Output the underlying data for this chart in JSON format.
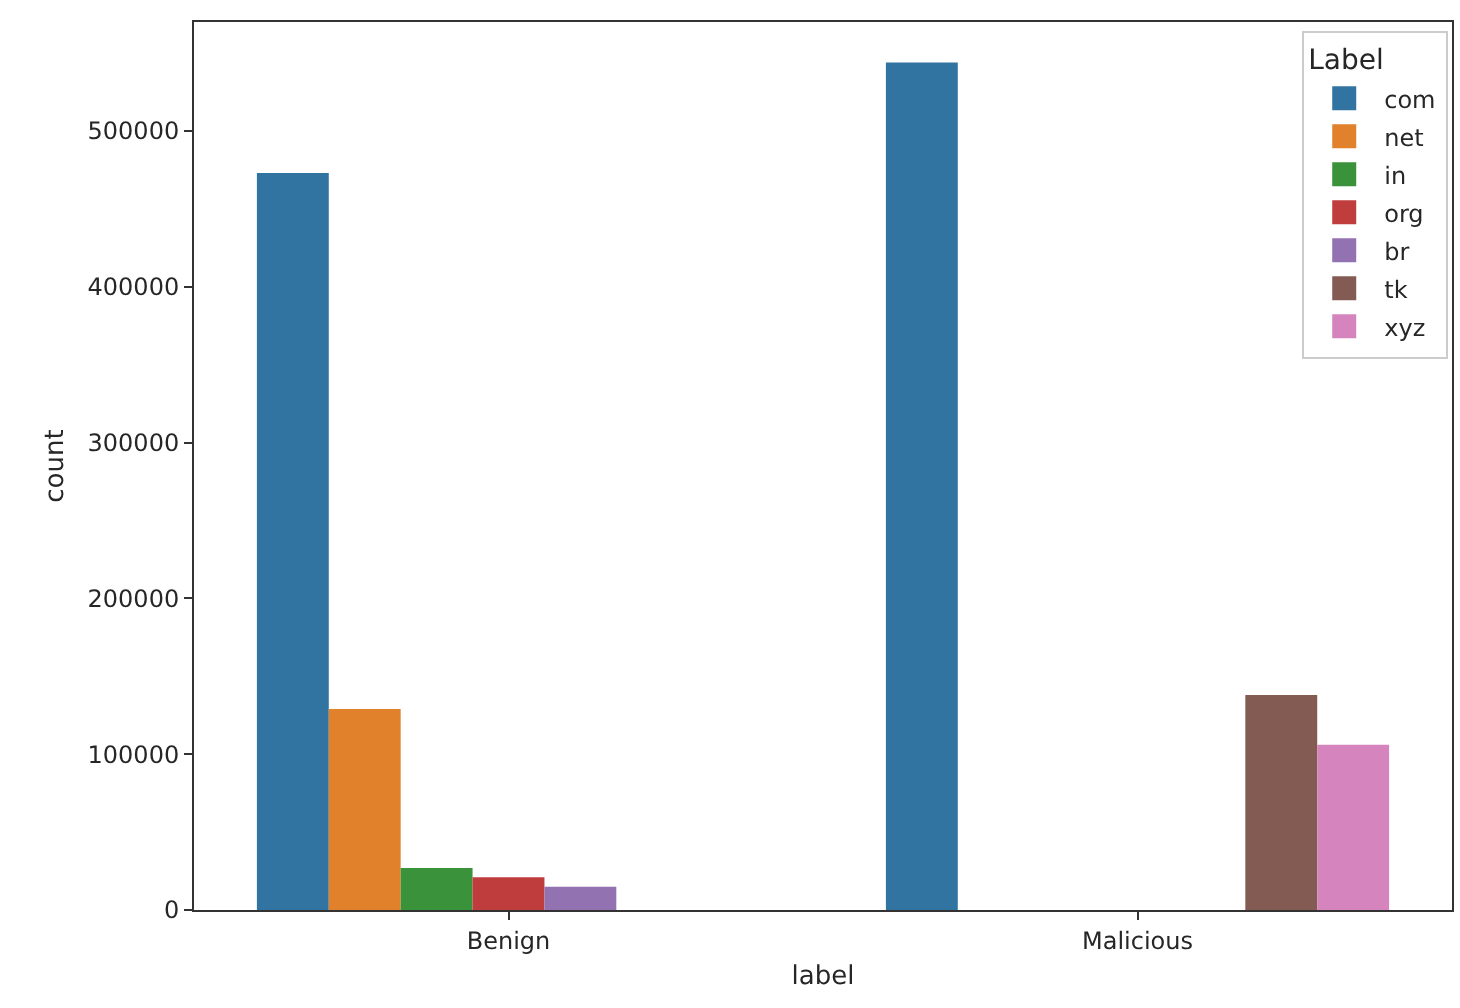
{
  "chart_data": {
    "type": "bar",
    "xlabel": "label",
    "ylabel": "count",
    "legend_title": "Label",
    "categories": [
      "Benign",
      "Malicious"
    ],
    "series": [
      {
        "name": "com",
        "color": "#3274a1",
        "values": [
          473000,
          544000
        ]
      },
      {
        "name": "net",
        "color": "#e1812c",
        "values": [
          129000,
          null
        ]
      },
      {
        "name": "in",
        "color": "#3a923a",
        "values": [
          27000,
          null
        ]
      },
      {
        "name": "org",
        "color": "#c03d3e",
        "values": [
          21000,
          null
        ]
      },
      {
        "name": "br",
        "color": "#9372b2",
        "values": [
          15000,
          null
        ]
      },
      {
        "name": "tk",
        "color": "#845b53",
        "values": [
          null,
          138000
        ]
      },
      {
        "name": "xyz",
        "color": "#d684bd",
        "values": [
          null,
          106000
        ]
      }
    ],
    "ylim": [
      0,
      570000
    ],
    "yticks": [
      0,
      100000,
      200000,
      300000,
      400000,
      500000
    ],
    "legend": "top right"
  }
}
